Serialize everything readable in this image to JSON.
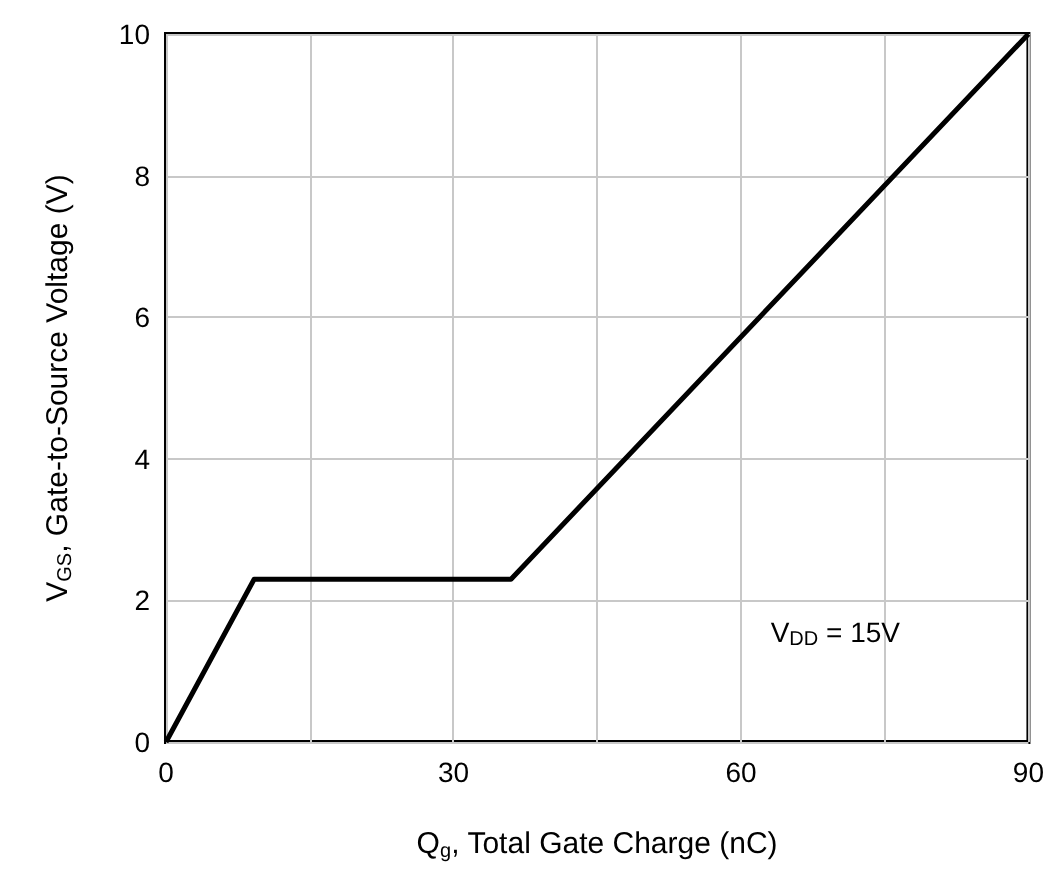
{
  "chart_data": {
    "type": "line",
    "xlabel": "Q$_{g}$, Total Gate Charge (nC)",
    "ylabel": "V$_{GS}$, Gate-to-Source Voltage (V)",
    "x": [
      0,
      9.2,
      36,
      90
    ],
    "series": [
      {
        "color": "#000000",
        "values": [
          0,
          2.3,
          2.3,
          10
        ]
      }
    ],
    "xlim": [
      0,
      90
    ],
    "ylim": [
      0,
      10
    ],
    "xticks": [
      0,
      {
        "value": 15,
        "label": null
      },
      30,
      {
        "value": 45,
        "label": null
      },
      60,
      {
        "value": 75,
        "label": null
      },
      90
    ],
    "yticks": [
      0,
      2,
      4,
      6,
      8,
      10
    ],
    "grid": true,
    "marker": "none",
    "line_style": "solid",
    "annotations": [
      "V$_{DD}$ = 15V"
    ]
  }
}
